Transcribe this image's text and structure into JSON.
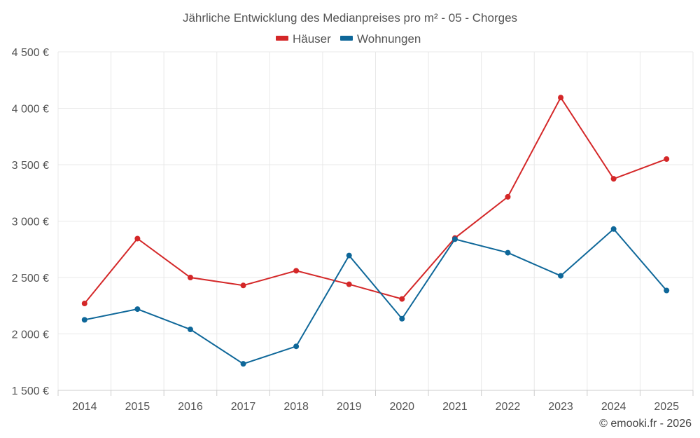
{
  "chart_data": {
    "type": "line",
    "title": "Jährliche Entwicklung des Medianpreises pro m² - 05 - Chorges",
    "categories": [
      "2014",
      "2015",
      "2016",
      "2017",
      "2018",
      "2019",
      "2020",
      "2021",
      "2022",
      "2023",
      "2024",
      "2025"
    ],
    "series": [
      {
        "name": "Häuser",
        "color": "#d42728",
        "values": [
          2270,
          2845,
          2500,
          2430,
          2560,
          2440,
          2310,
          2850,
          3215,
          4095,
          3375,
          3550
        ]
      },
      {
        "name": "Wohnungen",
        "color": "#0e6799",
        "values": [
          2125,
          2220,
          2040,
          1735,
          1890,
          2695,
          2135,
          2840,
          2720,
          2515,
          2930,
          2385
        ]
      }
    ],
    "ylim": [
      1500,
      4500
    ],
    "yticks": [
      1500,
      2000,
      2500,
      3000,
      3500,
      4000,
      4500
    ],
    "ytick_labels": [
      "1 500 €",
      "2 000 €",
      "2 500 €",
      "3 000 €",
      "3 500 €",
      "4 000 €",
      "4 500 €"
    ],
    "legend_position": "top-center",
    "xlabel": "",
    "ylabel": ""
  },
  "credit": "© emooki.fr - 2026"
}
